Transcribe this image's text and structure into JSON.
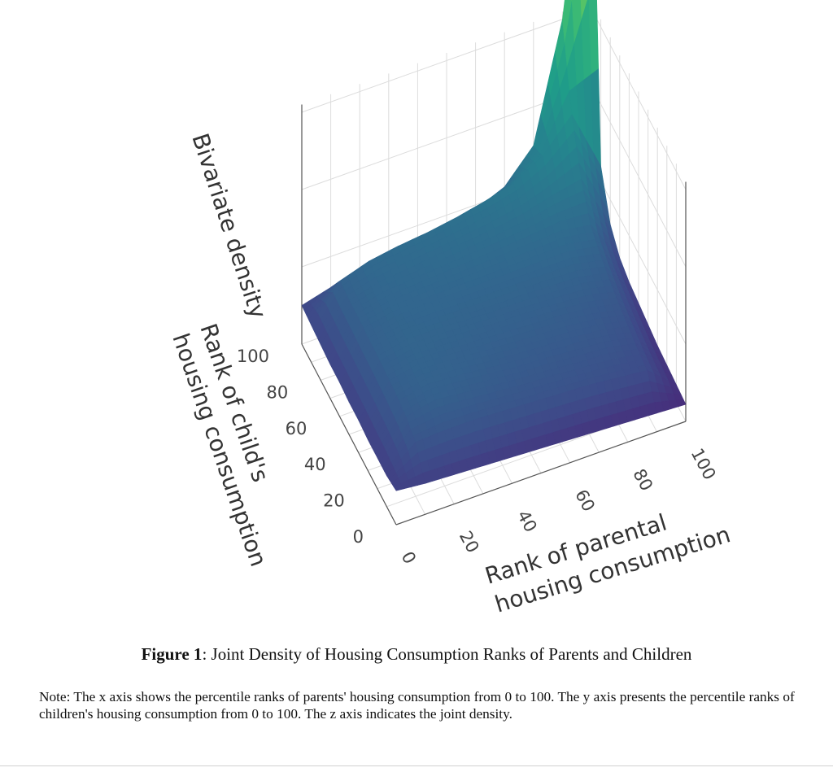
{
  "chart_data": {
    "type": "surface",
    "x_axis": {
      "label_line1": "Rank of parental",
      "label_line2": "housing consumption",
      "ticks": [
        "0",
        "20",
        "40",
        "60",
        "80",
        "100"
      ],
      "range": [
        0,
        100
      ]
    },
    "y_axis": {
      "label_line1": "Rank of child's",
      "label_line2": "housing consumption",
      "ticks": [
        "0",
        "20",
        "40",
        "60",
        "80",
        "100"
      ],
      "range": [
        0,
        100
      ]
    },
    "z_axis": {
      "label": "Bivariate density"
    },
    "colorscale": "viridis",
    "grid": true,
    "grid_x": [
      0,
      10,
      20,
      30,
      40,
      50,
      60,
      70,
      80,
      90,
      100
    ],
    "grid_y": [
      0,
      10,
      20,
      30,
      40,
      50,
      60,
      70,
      80,
      90,
      100
    ],
    "density": [
      [
        0.22,
        0.2,
        0.19,
        0.18,
        0.17,
        0.16,
        0.15,
        0.14,
        0.13,
        0.12,
        0.11
      ],
      [
        0.2,
        0.35,
        0.36,
        0.36,
        0.35,
        0.34,
        0.33,
        0.32,
        0.3,
        0.28,
        0.12
      ],
      [
        0.2,
        0.4,
        0.44,
        0.42,
        0.4,
        0.38,
        0.37,
        0.35,
        0.34,
        0.3,
        0.13
      ],
      [
        0.2,
        0.42,
        0.46,
        0.45,
        0.43,
        0.41,
        0.4,
        0.39,
        0.37,
        0.33,
        0.14
      ],
      [
        0.21,
        0.43,
        0.47,
        0.46,
        0.45,
        0.44,
        0.43,
        0.42,
        0.4,
        0.36,
        0.16
      ],
      [
        0.21,
        0.44,
        0.48,
        0.48,
        0.47,
        0.46,
        0.46,
        0.45,
        0.44,
        0.4,
        0.18
      ],
      [
        0.22,
        0.44,
        0.48,
        0.49,
        0.49,
        0.49,
        0.49,
        0.49,
        0.49,
        0.45,
        0.2
      ],
      [
        0.22,
        0.45,
        0.49,
        0.5,
        0.51,
        0.52,
        0.53,
        0.54,
        0.55,
        0.52,
        0.24
      ],
      [
        0.23,
        0.45,
        0.5,
        0.52,
        0.54,
        0.56,
        0.58,
        0.61,
        0.66,
        0.7,
        0.34
      ],
      [
        0.24,
        0.46,
        0.52,
        0.55,
        0.57,
        0.6,
        0.64,
        0.69,
        0.8,
        1.0,
        0.6
      ],
      [
        0.25,
        0.3,
        0.32,
        0.35,
        0.38,
        0.42,
        0.47,
        0.55,
        0.75,
        1.5,
        3.0
      ]
    ],
    "z_max": 3.0
  },
  "caption": {
    "label": "Figure 1",
    "text": ": Joint Density of Housing Consumption Ranks of Parents and Children"
  },
  "note": "Note: The x axis shows the percentile ranks of parents' housing consumption from 0 to 100. The y axis presents the percentile ranks of children's housing consumption from 0 to 100. The z axis indicates the joint density."
}
